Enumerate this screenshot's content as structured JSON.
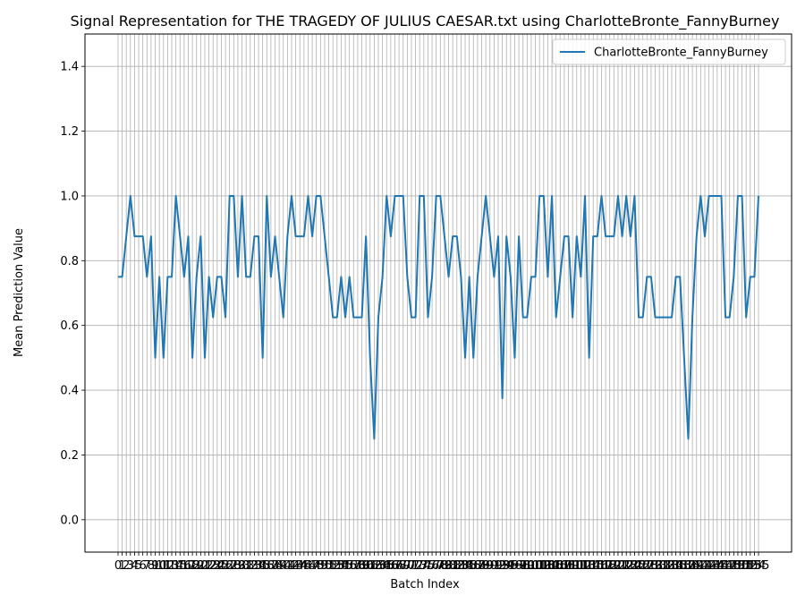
{
  "chart_data": {
    "type": "line",
    "title": "Signal Representation for THE TRAGEDY OF JULIUS CAESAR.txt using CharlotteBronte_FannyBurney",
    "xlabel": "Batch Index",
    "ylabel": "Mean Prediction Value",
    "ylim": [
      -0.1,
      1.5
    ],
    "yticks": [
      0.0,
      0.2,
      0.4,
      0.6,
      0.8,
      1.0,
      1.2,
      1.4
    ],
    "ytick_labels": [
      "0.0",
      "0.2",
      "0.4",
      "0.6",
      "0.8",
      "1.0",
      "1.2",
      "1.4"
    ],
    "xlim": [
      -8,
      163
    ],
    "xtick_labels": [
      "0",
      "1",
      "2",
      "3",
      "4",
      "5",
      "6",
      "7",
      "8",
      "9",
      "10",
      "11",
      "12",
      "13",
      "14",
      "15",
      "16",
      "17",
      "18",
      "19",
      "20",
      "21",
      "22",
      "23",
      "24",
      "25",
      "26",
      "27",
      "28",
      "29",
      "30",
      "31",
      "32",
      "33",
      "34",
      "35",
      "36",
      "37",
      "38",
      "39",
      "40",
      "41",
      "42",
      "43",
      "44",
      "45",
      "46",
      "47",
      "48",
      "49",
      "50",
      "51",
      "52",
      "53",
      "54",
      "55",
      "56",
      "57",
      "58",
      "59",
      "60",
      "61",
      "62",
      "63",
      "64",
      "65",
      "66",
      "67",
      "68",
      "69",
      "70",
      "71",
      "72",
      "73",
      "74",
      "75",
      "76",
      "77",
      "78",
      "79",
      "80",
      "81",
      "82",
      "83",
      "84",
      "85",
      "86",
      "87",
      "88",
      "89",
      "90",
      "91",
      "92",
      "93",
      "94",
      "95",
      "96",
      "97",
      "98",
      "99",
      "100",
      "101",
      "102",
      "103",
      "104",
      "105",
      "106",
      "107",
      "108",
      "109",
      "110",
      "111",
      "112",
      "113",
      "114",
      "115",
      "116",
      "117",
      "118",
      "119",
      "120",
      "121",
      "122",
      "123",
      "124",
      "125",
      "126",
      "127",
      "128",
      "129",
      "130",
      "131",
      "132",
      "133",
      "134",
      "135",
      "136",
      "137",
      "138",
      "139",
      "140",
      "141",
      "142",
      "143",
      "144",
      "145",
      "146",
      "147",
      "148",
      "149",
      "150",
      "151",
      "152",
      "153",
      "154",
      "155"
    ],
    "grid": true,
    "legend_position": "top-right",
    "series": [
      {
        "name": "CharlotteBronte_FannyBurney",
        "color": "#1f77b4",
        "x": [
          0,
          1,
          2,
          3,
          4,
          5,
          6,
          7,
          8,
          9,
          10,
          11,
          12,
          13,
          14,
          15,
          16,
          17,
          18,
          19,
          20,
          21,
          22,
          23,
          24,
          25,
          26,
          27,
          28,
          29,
          30,
          31,
          32,
          33,
          34,
          35,
          36,
          37,
          38,
          39,
          40,
          41,
          42,
          43,
          44,
          45,
          46,
          47,
          48,
          49,
          50,
          51,
          52,
          53,
          54,
          55,
          56,
          57,
          58,
          59,
          60,
          61,
          62,
          63,
          64,
          65,
          66,
          67,
          68,
          69,
          70,
          71,
          72,
          73,
          74,
          75,
          76,
          77,
          78,
          79,
          80,
          81,
          82,
          83,
          84,
          85,
          86,
          87,
          88,
          89,
          90,
          91,
          92,
          93,
          94,
          95,
          96,
          97,
          98,
          99,
          100,
          101,
          102,
          103,
          104,
          105,
          106,
          107,
          108,
          109,
          110,
          111,
          112,
          113,
          114,
          115,
          116,
          117,
          118,
          119,
          120,
          121,
          122,
          123,
          124,
          125,
          126,
          127,
          128,
          129,
          130,
          131,
          132,
          133,
          134,
          135,
          136,
          137,
          138,
          139,
          140,
          141,
          142,
          143,
          144,
          145,
          146,
          147,
          148,
          149,
          150,
          151,
          152,
          153,
          154,
          155
        ],
        "values": [
          0.75,
          0.75,
          0.875,
          1.0,
          0.875,
          0.875,
          0.875,
          0.75,
          0.875,
          0.5,
          0.75,
          0.5,
          0.75,
          0.75,
          1.0,
          0.875,
          0.75,
          0.875,
          0.5,
          0.75,
          0.875,
          0.5,
          0.75,
          0.625,
          0.75,
          0.75,
          0.625,
          1.0,
          1.0,
          0.75,
          1.0,
          0.75,
          0.75,
          0.875,
          0.875,
          0.5,
          1.0,
          0.75,
          0.875,
          0.75,
          0.625,
          0.875,
          1.0,
          0.875,
          0.875,
          0.875,
          1.0,
          0.875,
          1.0,
          1.0,
          0.875,
          0.75,
          0.625,
          0.625,
          0.75,
          0.625,
          0.75,
          0.625,
          0.625,
          0.625,
          0.875,
          0.5,
          0.25,
          0.625,
          0.75,
          1.0,
          0.875,
          1.0,
          1.0,
          1.0,
          0.75,
          0.625,
          0.625,
          1.0,
          1.0,
          0.625,
          0.75,
          1.0,
          1.0,
          0.875,
          0.75,
          0.875,
          0.875,
          0.75,
          0.5,
          0.75,
          0.5,
          0.75,
          0.875,
          1.0,
          0.875,
          0.75,
          0.875,
          0.375,
          0.875,
          0.75,
          0.5,
          0.875,
          0.625,
          0.625,
          0.75,
          0.75,
          1.0,
          1.0,
          0.75,
          1.0,
          0.625,
          0.75,
          0.875,
          0.875,
          0.625,
          0.875,
          0.75,
          1.0,
          0.5,
          0.875,
          0.875,
          1.0,
          0.875,
          0.875,
          0.875,
          1.0,
          0.875,
          1.0,
          0.875,
          1.0,
          0.625,
          0.625,
          0.75,
          0.75,
          0.625,
          0.625,
          0.625,
          0.625,
          0.625,
          0.75,
          0.75,
          0.5,
          0.25,
          0.625,
          0.875,
          1.0,
          0.875,
          1.0,
          1.0,
          1.0,
          1.0,
          0.625,
          0.625,
          0.75,
          1.0,
          1.0,
          0.625,
          0.75,
          0.75,
          1.0
        ]
      }
    ]
  }
}
